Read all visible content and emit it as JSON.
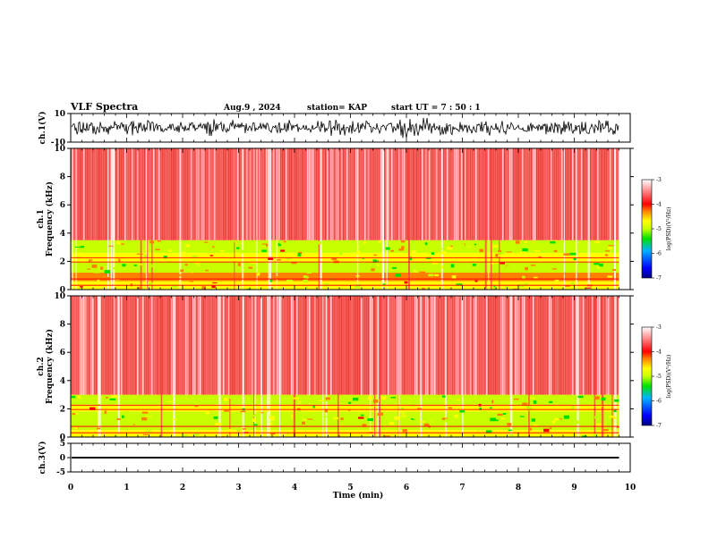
{
  "header": {
    "title": "VLF Spectra",
    "date": "Aug.9 , 2024",
    "station": "station= KAP",
    "start": "start UT = 7 : 50 : 1"
  },
  "chart_data": [
    {
      "type": "line",
      "name": "ch1-waveform",
      "ylabel": "ch.1(V)",
      "ylim": [
        -10,
        10
      ],
      "yticks": [
        "10",
        "-10"
      ],
      "xlim": [
        0,
        9.8
      ],
      "amplitude_envelope": [
        6,
        5,
        7,
        4,
        6,
        8,
        5,
        6,
        4,
        7,
        6,
        5,
        8,
        6,
        5,
        7,
        4,
        6,
        5,
        7
      ]
    },
    {
      "type": "heatmap",
      "name": "ch1-spectrogram",
      "ylabel_lines": [
        "ch.1",
        "Frequency (kHz)"
      ],
      "ylim": [
        0,
        10
      ],
      "yticks": [
        "10",
        "8",
        "6",
        "4",
        "2",
        "0"
      ],
      "xlim": [
        0,
        9.8
      ],
      "bands_khz": [
        {
          "from": 0.0,
          "to": 0.6,
          "level": -4.6
        },
        {
          "from": 0.6,
          "to": 1.2,
          "level": -4.2
        },
        {
          "from": 1.2,
          "to": 2.0,
          "level": -4.8
        },
        {
          "from": 2.0,
          "to": 2.6,
          "level": -4.3
        },
        {
          "from": 2.6,
          "to": 3.5,
          "level": -4.9
        },
        {
          "from": 3.5,
          "to": 10.0,
          "level": -3.5
        }
      ],
      "colorbar": {
        "label": "log(PSD)(V²/Hz)",
        "range": [
          -7,
          -3
        ],
        "ticks": [
          "-3",
          "-4",
          "-5",
          "-6",
          "-7"
        ]
      }
    },
    {
      "type": "heatmap",
      "name": "ch2-spectrogram",
      "ylabel_lines": [
        "ch.2",
        "Frequency (kHz)"
      ],
      "ylim": [
        0,
        10
      ],
      "yticks": [
        "10",
        "8",
        "6",
        "4",
        "2",
        "0"
      ],
      "xlim": [
        0,
        9.8
      ],
      "bands_khz": [
        {
          "from": 0.0,
          "to": 0.5,
          "level": -4.6
        },
        {
          "from": 0.5,
          "to": 1.8,
          "level": -5.1
        },
        {
          "from": 1.8,
          "to": 2.3,
          "level": -4.3
        },
        {
          "from": 2.3,
          "to": 3.0,
          "level": -5.0
        },
        {
          "from": 3.0,
          "to": 10.0,
          "level": -3.6
        }
      ],
      "colorbar": {
        "label": "log(PSD)(V²/Hz)",
        "range": [
          -7,
          -3
        ],
        "ticks": [
          "-3",
          "-4",
          "-5",
          "-6",
          "-7"
        ]
      }
    },
    {
      "type": "line",
      "name": "ch3-waveform",
      "ylabel": "ch.3(V)",
      "ylim": [
        -5,
        5
      ],
      "yticks": [
        "5",
        "0",
        "-5"
      ],
      "xlim": [
        0,
        9.8
      ],
      "level": 0,
      "band": [
        -0.3,
        0.3
      ]
    }
  ],
  "xaxis": {
    "label": "Time (min)",
    "range": [
      0,
      10
    ],
    "ticks": [
      "0",
      "1",
      "2",
      "3",
      "4",
      "5",
      "6",
      "7",
      "8",
      "9",
      "10"
    ]
  },
  "colors": {
    "palette": [
      "#000080",
      "#0000ff",
      "#00b4ff",
      "#00e000",
      "#c8ff00",
      "#ffff00",
      "#ff8000",
      "#ff0000",
      "#ffffff"
    ]
  }
}
